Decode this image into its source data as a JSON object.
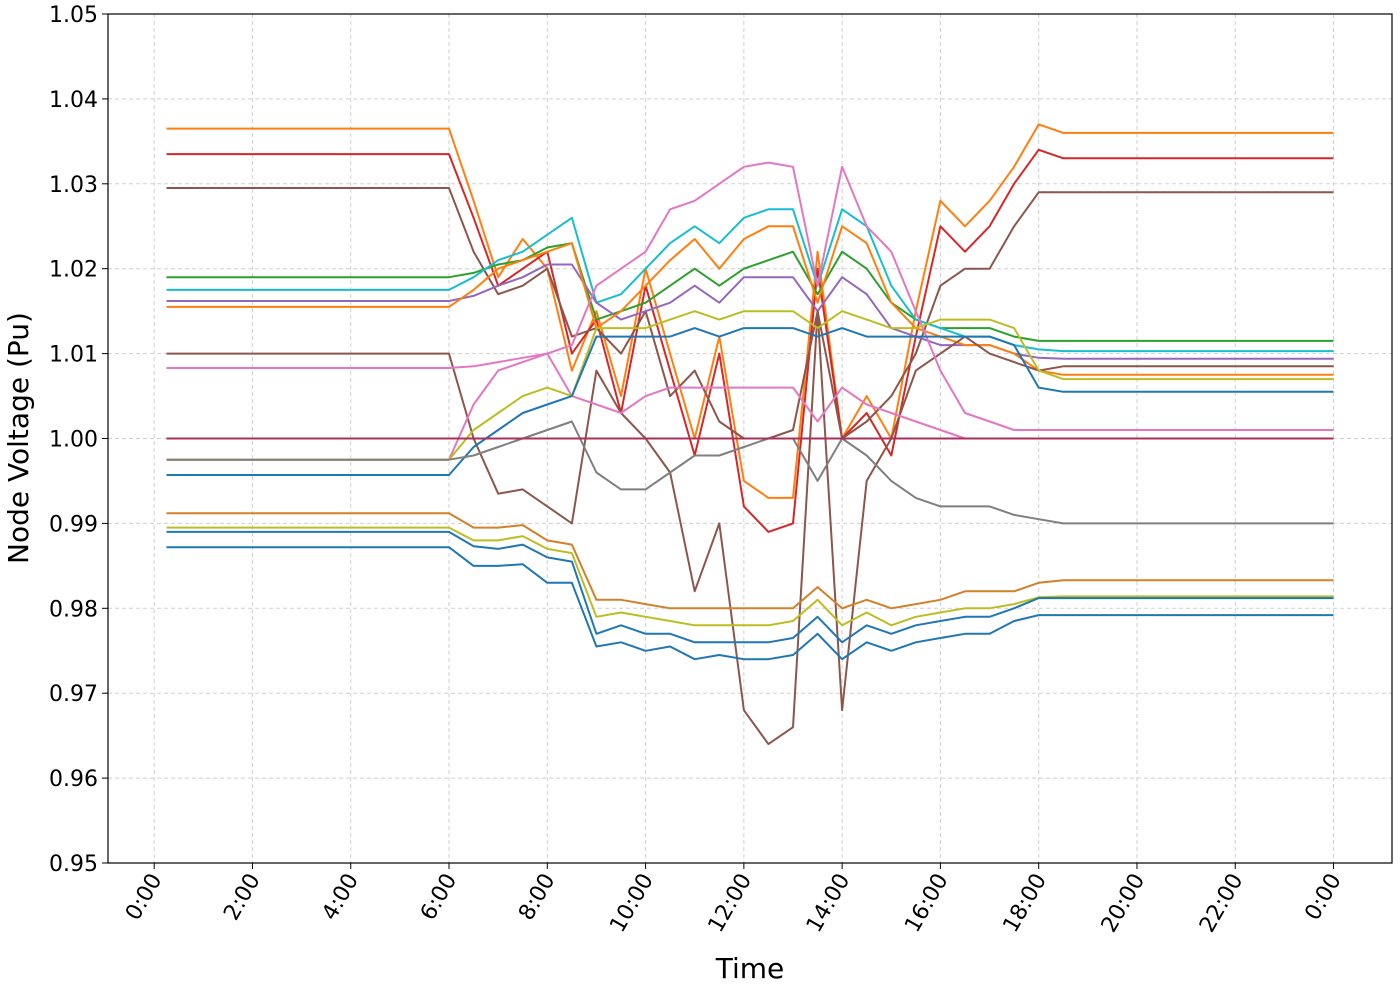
{
  "chart_data": {
    "type": "line",
    "x_label": "Time",
    "y_label": "Node Voltage (Pu)",
    "x": [
      0.25,
      6,
      6.5,
      7,
      7.5,
      8,
      8.5,
      9,
      9.5,
      10,
      10.5,
      11,
      11.5,
      12,
      12.5,
      13,
      13.5,
      14,
      14.5,
      15,
      15.5,
      16,
      16.5,
      17,
      17.5,
      18,
      18.5,
      24
    ],
    "xlim": [
      -0.94,
      25.19
    ],
    "xticks": [
      {
        "value": 0,
        "label": "0:00"
      },
      {
        "value": 2,
        "label": "2:00"
      },
      {
        "value": 4,
        "label": "4:00"
      },
      {
        "value": 6,
        "label": "6:00"
      },
      {
        "value": 8,
        "label": "8:00"
      },
      {
        "value": 10,
        "label": "10:00"
      },
      {
        "value": 12,
        "label": "12:00"
      },
      {
        "value": 14,
        "label": "14:00"
      },
      {
        "value": 16,
        "label": "16:00"
      },
      {
        "value": 18,
        "label": "18:00"
      },
      {
        "value": 20,
        "label": "20:00"
      },
      {
        "value": 22,
        "label": "22:00"
      },
      {
        "value": 24,
        "label": "0:00"
      }
    ],
    "ylim": [
      0.95,
      1.05
    ],
    "yticks": [
      0.95,
      0.96,
      0.97,
      0.98,
      0.99,
      {
        "value": 1.0,
        "label": "1.00"
      },
      1.01,
      1.02,
      1.03,
      1.04,
      1.05
    ],
    "grid": true,
    "series": [
      {
        "color": "#ff7f0e",
        "values": [
          1.0365,
          1.0365,
          1.028,
          1.019,
          1.0235,
          1.02,
          1.008,
          1.015,
          1.005,
          1.02,
          1.01,
          1.0,
          1.012,
          0.995,
          0.993,
          0.993,
          1.022,
          1.0,
          1.005,
          1.0,
          1.015,
          1.028,
          1.025,
          1.028,
          1.032,
          1.037,
          1.036,
          1.036
        ]
      },
      {
        "color": "#d62728",
        "values": [
          1.0335,
          1.0335,
          1.026,
          1.018,
          1.02,
          1.022,
          1.01,
          1.014,
          1.003,
          1.018,
          1.008,
          0.998,
          1.01,
          0.992,
          0.989,
          0.99,
          1.02,
          1.0,
          1.003,
          0.998,
          1.012,
          1.025,
          1.022,
          1.025,
          1.03,
          1.034,
          1.033,
          1.033
        ]
      },
      {
        "color": "#8c564b",
        "values": [
          1.0295,
          1.0295,
          1.022,
          1.017,
          1.018,
          1.02,
          1.012,
          1.013,
          1.01,
          1.015,
          1.005,
          1.008,
          1.002,
          1.0,
          1.0,
          1.001,
          1.015,
          1.0,
          1.002,
          1.005,
          1.01,
          1.018,
          1.02,
          1.02,
          1.025,
          1.029,
          1.029,
          1.029
        ]
      },
      {
        "color": "#2ca02c",
        "values": [
          1.019,
          1.019,
          1.0195,
          1.0205,
          1.021,
          1.0225,
          1.023,
          1.014,
          1.015,
          1.016,
          1.018,
          1.02,
          1.018,
          1.02,
          1.021,
          1.022,
          1.017,
          1.022,
          1.02,
          1.016,
          1.014,
          1.013,
          1.013,
          1.013,
          1.012,
          1.0115,
          1.0115,
          1.0115
        ]
      },
      {
        "color": "#17becf",
        "values": [
          1.0175,
          1.0175,
          1.019,
          1.021,
          1.022,
          1.024,
          1.026,
          1.016,
          1.017,
          1.02,
          1.023,
          1.025,
          1.023,
          1.026,
          1.027,
          1.027,
          1.018,
          1.027,
          1.025,
          1.018,
          1.014,
          1.013,
          1.012,
          1.012,
          1.011,
          1.0105,
          1.0103,
          1.0103
        ]
      },
      {
        "color": "#9467bd",
        "values": [
          1.0162,
          1.0162,
          1.0168,
          1.018,
          1.019,
          1.0205,
          1.0205,
          1.016,
          1.014,
          1.015,
          1.016,
          1.018,
          1.016,
          1.019,
          1.019,
          1.019,
          1.015,
          1.019,
          1.017,
          1.013,
          1.012,
          1.011,
          1.011,
          1.011,
          1.01,
          1.0095,
          1.0094,
          1.0094
        ]
      },
      {
        "color": "#ff7f0e",
        "values": [
          1.0155,
          1.0155,
          1.0175,
          1.02,
          1.021,
          1.022,
          1.023,
          1.013,
          1.015,
          1.018,
          1.021,
          1.0235,
          1.02,
          1.0235,
          1.025,
          1.025,
          1.016,
          1.025,
          1.023,
          1.016,
          1.013,
          1.012,
          1.011,
          1.011,
          1.01,
          1.008,
          1.0075,
          1.0075
        ]
      },
      {
        "color": "#8c564b",
        "values": [
          1.01,
          1.01,
          1.0,
          0.9935,
          0.994,
          0.992,
          0.99,
          1.008,
          1.003,
          1.0,
          0.996,
          0.982,
          0.99,
          0.968,
          0.964,
          0.966,
          1.015,
          0.968,
          0.995,
          1.0,
          1.008,
          1.01,
          1.012,
          1.01,
          1.009,
          1.008,
          1.0085,
          1.0085
        ]
      },
      {
        "color": "#e377c2",
        "values": [
          1.0083,
          1.0083,
          1.0085,
          1.009,
          1.0095,
          1.01,
          1.011,
          1.018,
          1.02,
          1.022,
          1.027,
          1.028,
          1.03,
          1.032,
          1.0325,
          1.032,
          1.018,
          1.032,
          1.025,
          1.022,
          1.015,
          1.008,
          1.003,
          1.002,
          1.001,
          1.001,
          1.001,
          1.001
        ]
      },
      {
        "color": "#e377c2",
        "values": [
          0.9975,
          0.9975,
          1.004,
          1.008,
          1.009,
          1.01,
          1.005,
          1.004,
          1.003,
          1.005,
          1.006,
          1.006,
          1.006,
          1.006,
          1.006,
          1.006,
          1.002,
          1.006,
          1.004,
          1.003,
          1.002,
          1.001,
          1.0,
          1.0,
          1.0,
          1.0,
          1.0,
          1.0
        ]
      },
      {
        "color": "#bcbd22",
        "values": [
          0.9975,
          0.9975,
          1.001,
          1.003,
          1.005,
          1.006,
          1.005,
          1.013,
          1.013,
          1.013,
          1.014,
          1.015,
          1.014,
          1.015,
          1.015,
          1.015,
          1.013,
          1.015,
          1.014,
          1.013,
          1.013,
          1.014,
          1.014,
          1.014,
          1.013,
          1.008,
          1.007,
          1.007
        ]
      },
      {
        "color": "#1f77b4",
        "values": [
          0.9957,
          0.9957,
          0.999,
          1.001,
          1.003,
          1.004,
          1.005,
          1.012,
          1.012,
          1.012,
          1.012,
          1.013,
          1.012,
          1.013,
          1.013,
          1.013,
          1.012,
          1.013,
          1.012,
          1.012,
          1.012,
          1.012,
          1.012,
          1.012,
          1.011,
          1.006,
          1.0055,
          1.0055
        ]
      },
      {
        "color": "#7f7f7f",
        "values": [
          0.9975,
          0.9975,
          0.998,
          0.999,
          1.0,
          1.001,
          1.002,
          0.996,
          0.994,
          0.994,
          0.996,
          0.998,
          0.998,
          0.999,
          1.0,
          1.0,
          0.995,
          1.0,
          0.998,
          0.995,
          0.993,
          0.992,
          0.992,
          0.992,
          0.991,
          0.9905,
          0.99,
          0.99
        ]
      },
      {
        "color": "#a8325e",
        "values": [
          1.0,
          1.0,
          1.0,
          1.0,
          1.0,
          1.0,
          1.0,
          1.0,
          1.0,
          1.0,
          1.0,
          1.0,
          1.0,
          1.0,
          1.0,
          1.0,
          1.0,
          1.0,
          1.0,
          1.0,
          1.0,
          1.0,
          1.0,
          1.0,
          1.0,
          1.0,
          1.0,
          1.0
        ]
      },
      {
        "color": "#d2802a",
        "values": [
          0.9912,
          0.9912,
          0.9895,
          0.9895,
          0.9898,
          0.988,
          0.9875,
          0.981,
          0.981,
          0.9805,
          0.98,
          0.98,
          0.98,
          0.98,
          0.98,
          0.98,
          0.9825,
          0.98,
          0.981,
          0.98,
          0.9805,
          0.981,
          0.982,
          0.982,
          0.982,
          0.983,
          0.9833,
          0.9833
        ]
      },
      {
        "color": "#bcbd22",
        "values": [
          0.9895,
          0.9895,
          0.988,
          0.988,
          0.9885,
          0.987,
          0.9865,
          0.979,
          0.9795,
          0.979,
          0.9785,
          0.978,
          0.978,
          0.978,
          0.978,
          0.9785,
          0.981,
          0.978,
          0.9795,
          0.978,
          0.979,
          0.9795,
          0.98,
          0.98,
          0.9805,
          0.9813,
          0.9814,
          0.9814
        ]
      },
      {
        "color": "#1f77b4",
        "values": [
          0.989,
          0.989,
          0.9873,
          0.987,
          0.9875,
          0.986,
          0.9855,
          0.977,
          0.978,
          0.977,
          0.977,
          0.976,
          0.976,
          0.976,
          0.976,
          0.9765,
          0.979,
          0.976,
          0.978,
          0.977,
          0.978,
          0.9785,
          0.979,
          0.979,
          0.98,
          0.9812,
          0.9812,
          0.9812
        ]
      },
      {
        "color": "#1f77b4",
        "values": [
          0.9872,
          0.9872,
          0.985,
          0.985,
          0.9852,
          0.983,
          0.983,
          0.9755,
          0.976,
          0.975,
          0.9755,
          0.974,
          0.9745,
          0.974,
          0.974,
          0.9745,
          0.977,
          0.974,
          0.976,
          0.975,
          0.976,
          0.9765,
          0.977,
          0.977,
          0.9785,
          0.9792,
          0.9792,
          0.9792
        ]
      }
    ]
  }
}
